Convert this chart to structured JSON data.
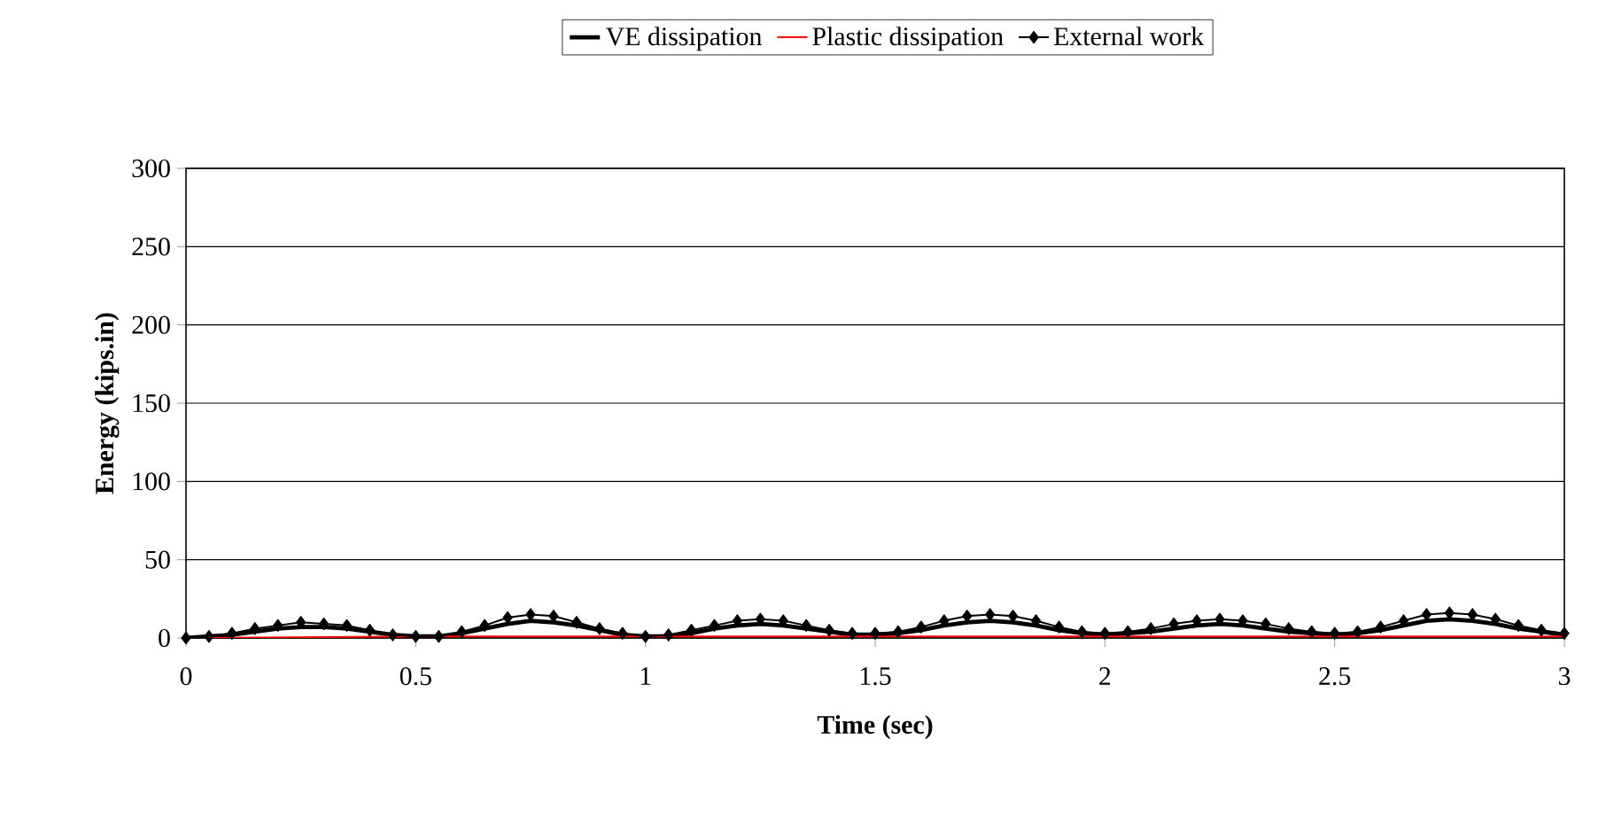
{
  "chart_data": {
    "type": "line",
    "ylabel": "Energy (kips.in)",
    "xlabel": "Time (sec)",
    "xlim": [
      0,
      3
    ],
    "xticks": [
      0,
      0.5,
      1,
      1.5,
      2,
      2.5,
      3
    ],
    "ylim": [
      0,
      300
    ],
    "yticks": [
      0,
      50,
      100,
      150,
      200,
      250,
      300
    ],
    "grid": "y",
    "legend": "top",
    "line_style": "solid",
    "series": [
      {
        "name": "VE dissipation",
        "color": "#000000",
        "marker": "none",
        "x": [
          0,
          0.05,
          0.1,
          0.15,
          0.2,
          0.25,
          0.3,
          0.35,
          0.4,
          0.45,
          0.5,
          0.55,
          0.6,
          0.65,
          0.7,
          0.75,
          0.8,
          0.85,
          0.9,
          0.95,
          1.0,
          1.05,
          1.1,
          1.15,
          1.2,
          1.25,
          1.3,
          1.35,
          1.4,
          1.45,
          1.5,
          1.55,
          1.6,
          1.65,
          1.7,
          1.75,
          1.8,
          1.85,
          1.9,
          1.95,
          2.0,
          2.05,
          2.1,
          2.15,
          2.2,
          2.25,
          2.3,
          2.35,
          2.4,
          2.45,
          2.5,
          2.55,
          2.6,
          2.65,
          2.7,
          2.75,
          2.8,
          2.85,
          2.9,
          2.95,
          3.0
        ],
        "values": [
          0,
          1,
          2,
          4,
          6,
          7,
          7,
          6,
          4,
          2,
          1,
          1,
          3,
          6,
          9,
          11,
          10,
          8,
          5,
          2,
          1,
          1,
          3,
          6,
          8,
          9,
          8,
          6,
          4,
          2,
          2,
          3,
          5,
          8,
          10,
          11,
          10,
          8,
          5,
          3,
          2,
          3,
          4,
          6,
          8,
          9,
          8,
          6,
          4,
          3,
          2,
          3,
          5,
          8,
          11,
          12,
          11,
          9,
          6,
          4,
          2
        ]
      },
      {
        "name": "Plastic dissipation",
        "color": "#ff0000",
        "marker": "none",
        "x": [
          0,
          0.5,
          1,
          1.5,
          2,
          2.5,
          3
        ],
        "values": [
          0,
          1,
          1,
          1,
          1,
          1,
          1
        ]
      },
      {
        "name": "External work",
        "color": "#000000",
        "marker": "diamond",
        "x": [
          0,
          0.05,
          0.1,
          0.15,
          0.2,
          0.25,
          0.3,
          0.35,
          0.4,
          0.45,
          0.5,
          0.55,
          0.6,
          0.65,
          0.7,
          0.75,
          0.8,
          0.85,
          0.9,
          0.95,
          1.0,
          1.05,
          1.1,
          1.15,
          1.2,
          1.25,
          1.3,
          1.35,
          1.4,
          1.45,
          1.5,
          1.55,
          1.6,
          1.65,
          1.7,
          1.75,
          1.8,
          1.85,
          1.9,
          1.95,
          2.0,
          2.05,
          2.1,
          2.15,
          2.2,
          2.25,
          2.3,
          2.35,
          2.4,
          2.45,
          2.5,
          2.55,
          2.6,
          2.65,
          2.7,
          2.75,
          2.8,
          2.85,
          2.9,
          2.95,
          3.0
        ],
        "values": [
          0,
          1,
          3,
          6,
          8,
          10,
          9,
          8,
          5,
          2,
          1,
          1,
          4,
          8,
          13,
          15,
          14,
          10,
          6,
          3,
          1,
          2,
          5,
          8,
          11,
          12,
          11,
          8,
          5,
          3,
          3,
          4,
          7,
          11,
          14,
          15,
          14,
          11,
          7,
          4,
          3,
          4,
          6,
          9,
          11,
          12,
          11,
          9,
          6,
          4,
          3,
          4,
          7,
          11,
          15,
          16,
          15,
          12,
          8,
          5,
          3
        ]
      }
    ]
  }
}
